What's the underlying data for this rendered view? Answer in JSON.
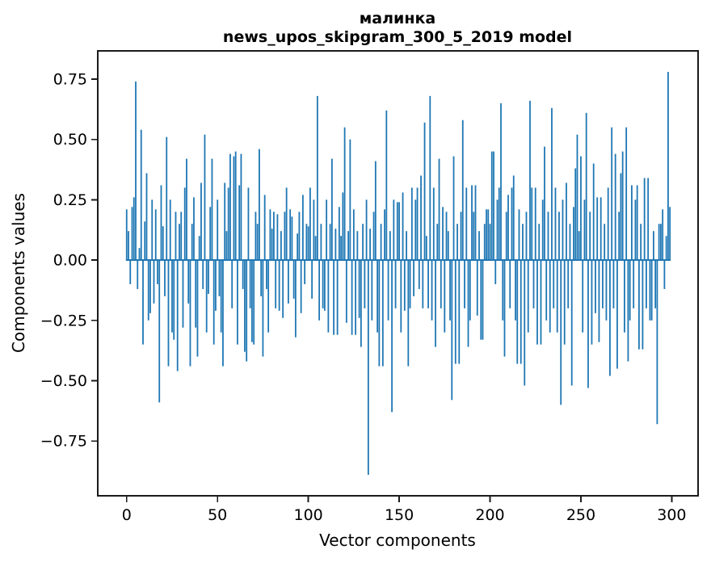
{
  "figure": {
    "title_line1": "малинка",
    "title_line2": "news_upos_skipgram_300_5_2019 model",
    "xlabel": "Vector components",
    "ylabel": "Components values",
    "background": "#ffffff",
    "text_color": "#000000",
    "spine_color": "#1a1a1a"
  },
  "chart_data": {
    "type": "bar",
    "title": "малинка\nnews_upos_skipgram_300_5_2019 model",
    "xlabel": "Vector components",
    "ylabel": "Components values",
    "legend": null,
    "grid": false,
    "bar_color": "#1f77b4",
    "bar_width": 0.8,
    "n_components": 300,
    "xlim": [
      -15.9,
      314.5
    ],
    "ylim": [
      -0.977,
      0.867
    ],
    "xticks": [
      0,
      50,
      100,
      150,
      200,
      250,
      300
    ],
    "xtick_labels": [
      "0",
      "50",
      "100",
      "150",
      "200",
      "250",
      "300"
    ],
    "yticks": [
      0.75,
      0.5,
      0.25,
      0.0,
      -0.25,
      -0.5,
      -0.75
    ],
    "ytick_labels": [
      "0.75",
      "0.50",
      "0.25",
      "0.00",
      "−0.25",
      "−0.50",
      "−0.75"
    ],
    "values": [
      0.21,
      0.12,
      -0.1,
      0.22,
      0.26,
      0.74,
      -0.12,
      0.05,
      0.54,
      -0.35,
      0.16,
      0.36,
      -0.25,
      -0.22,
      0.25,
      -0.18,
      0.21,
      -0.1,
      -0.59,
      0.31,
      0.14,
      -0.15,
      0.51,
      -0.44,
      0.25,
      -0.3,
      -0.33,
      0.2,
      -0.46,
      0.15,
      0.2,
      -0.28,
      0.3,
      0.42,
      -0.18,
      -0.44,
      0.15,
      0.26,
      -0.28,
      -0.4,
      0.1,
      0.32,
      -0.12,
      0.52,
      -0.3,
      -0.14,
      0.22,
      0.42,
      -0.35,
      -0.21,
      0.25,
      -0.15,
      -0.3,
      -0.44,
      0.32,
      0.12,
      0.3,
      0.44,
      -0.2,
      0.43,
      0.45,
      -0.35,
      0.31,
      0.44,
      -0.12,
      -0.38,
      -0.42,
      0.3,
      -0.2,
      -0.34,
      -0.35,
      0.2,
      0.15,
      0.46,
      -0.15,
      -0.4,
      0.27,
      -0.12,
      -0.3,
      0.21,
      0.13,
      0.2,
      -0.2,
      0.19,
      -0.21,
      0.12,
      -0.24,
      0.2,
      0.3,
      -0.18,
      0.21,
      0.18,
      -0.16,
      -0.32,
      0.11,
      0.2,
      -0.22,
      0.27,
      -0.1,
      0.15,
      0.14,
      0.3,
      -0.16,
      0.25,
      0.1,
      0.68,
      -0.25,
      0.15,
      -0.2,
      -0.21,
      0.25,
      -0.3,
      0.15,
      0.42,
      -0.31,
      0.13,
      -0.31,
      0.22,
      0.1,
      0.28,
      0.55,
      -0.26,
      0.12,
      0.5,
      -0.31,
      0.21,
      -0.31,
      0.12,
      -0.24,
      -0.36,
      0.15,
      -0.2,
      0.25,
      -0.89,
      0.13,
      -0.25,
      0.2,
      0.41,
      -0.3,
      -0.44,
      0.15,
      -0.44,
      0.21,
      0.62,
      -0.25,
      0.12,
      -0.63,
      0.25,
      -0.2,
      0.24,
      0.24,
      -0.3,
      0.28,
      -0.21,
      0.12,
      -0.44,
      -0.2,
      0.3,
      -0.15,
      0.25,
      0.3,
      -0.12,
      0.35,
      -0.2,
      0.57,
      0.1,
      -0.2,
      0.68,
      -0.25,
      0.3,
      -0.36,
      0.15,
      0.42,
      -0.2,
      0.22,
      -0.3,
      0.2,
      0.12,
      -0.25,
      -0.58,
      0.43,
      -0.43,
      0.15,
      -0.43,
      0.2,
      0.58,
      -0.2,
      0.3,
      -0.36,
      -0.25,
      0.31,
      0.2,
      0.31,
      -0.23,
      0.12,
      -0.33,
      -0.33,
      0.15,
      0.21,
      0.21,
      0.15,
      0.45,
      0.45,
      -0.1,
      0.25,
      0.3,
      0.65,
      -0.25,
      -0.4,
      0.2,
      0.27,
      -0.2,
      0.3,
      0.35,
      -0.25,
      -0.43,
      0.21,
      -0.43,
      0.15,
      -0.52,
      0.2,
      -0.3,
      0.66,
      0.3,
      -0.2,
      0.3,
      -0.35,
      0.15,
      -0.35,
      0.25,
      0.47,
      -0.25,
      0.2,
      -0.3,
      0.63,
      -0.2,
      0.3,
      -0.3,
      0.2,
      -0.6,
      0.25,
      -0.35,
      0.32,
      -0.2,
      0.15,
      -0.52,
      0.22,
      0.38,
      0.52,
      0.12,
      0.43,
      -0.3,
      0.25,
      0.61,
      -0.53,
      0.2,
      -0.35,
      0.4,
      -0.22,
      0.26,
      -0.34,
      0.26,
      -0.2,
      0.15,
      -0.25,
      0.3,
      -0.48,
      0.55,
      -0.2,
      0.44,
      -0.45,
      0.2,
      0.36,
      0.45,
      -0.3,
      0.55,
      -0.42,
      -0.25,
      0.31,
      -0.2,
      0.25,
      0.31,
      -0.37,
      0.15,
      -0.37,
      0.34,
      -0.2,
      0.34,
      -0.25,
      -0.25,
      0.12,
      -0.2,
      -0.68,
      0.15,
      0.15,
      0.21,
      -0.12,
      0.1,
      0.78,
      0.22
    ]
  }
}
